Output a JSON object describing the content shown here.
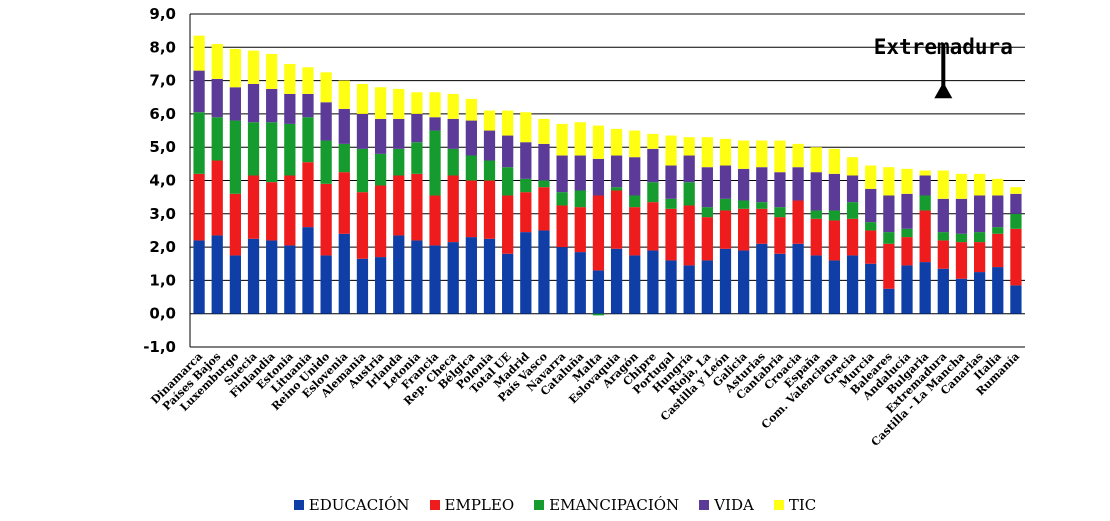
{
  "chart_data": {
    "type": "stacked-bar",
    "title": "",
    "xlabel": "",
    "ylabel": "",
    "ylim": [
      -1.0,
      9.0
    ],
    "yticks": [
      "-1,0",
      "0,0",
      "1,0",
      "2,0",
      "3,0",
      "4,0",
      "5,0",
      "6,0",
      "7,0",
      "8,0",
      "9,0"
    ],
    "grid": true,
    "legend_position": "bottom",
    "categories": [
      "Dinamarca",
      "Países Bajos",
      "Luxemburgo",
      "Suecia",
      "Finlandia",
      "Estonia",
      "Lituania",
      "Reino Unido",
      "Eslovenia",
      "Alemania",
      "Austria",
      "Irlanda",
      "Letonia",
      "Francia",
      "Rep. Checa",
      "Bélgica",
      "Polonia",
      "Total UE",
      "Madrid",
      "País Vasco",
      "Navarra",
      "Cataluña",
      "Malta",
      "Eslovaquia",
      "Aragón",
      "Chipre",
      "Portugal",
      "Hungría",
      "Rioja, La",
      "Castilla y León",
      "Galicia",
      "Asturias",
      "Cantabria",
      "Croacia",
      "España",
      "Com. Valenciana",
      "Grecia",
      "Murcia",
      "Baleares",
      "Andalucía",
      "Bulgaria",
      "Extremadura",
      "Castilla - La Mancha",
      "Canarias",
      "Italia",
      "Rumanía"
    ],
    "series": [
      {
        "name": "EDUCACIÓN",
        "color": "#0f3ea6",
        "values": [
          2.2,
          2.35,
          1.75,
          2.25,
          2.2,
          2.05,
          2.6,
          1.75,
          2.4,
          1.65,
          1.7,
          2.35,
          2.2,
          2.05,
          2.15,
          2.3,
          2.25,
          1.8,
          2.45,
          2.5,
          2.0,
          1.85,
          1.3,
          1.95,
          1.75,
          1.9,
          1.6,
          1.45,
          1.6,
          1.95,
          1.9,
          2.1,
          1.8,
          2.1,
          1.75,
          1.6,
          1.75,
          1.5,
          0.75,
          1.45,
          1.55,
          1.35,
          1.05,
          1.25,
          1.4,
          0.85
        ]
      },
      {
        "name": "EMPLEO",
        "color": "#ee1c1c",
        "values": [
          2.0,
          2.25,
          1.85,
          1.9,
          1.75,
          2.1,
          1.95,
          2.15,
          1.85,
          2.0,
          2.15,
          1.8,
          2.0,
          1.5,
          2.0,
          1.7,
          1.75,
          1.75,
          1.2,
          1.3,
          1.25,
          1.35,
          2.25,
          1.75,
          1.45,
          1.45,
          1.55,
          1.8,
          1.3,
          1.15,
          1.25,
          1.05,
          1.1,
          1.3,
          1.1,
          1.2,
          1.1,
          1.0,
          1.35,
          0.85,
          1.55,
          0.85,
          1.1,
          0.9,
          1.0,
          1.7
        ]
      },
      {
        "name": "EMANCIPACIÓN",
        "color": "#169c2e",
        "values": [
          1.85,
          1.3,
          2.2,
          1.6,
          1.8,
          1.55,
          1.35,
          1.3,
          0.85,
          1.3,
          0.95,
          0.8,
          0.95,
          1.95,
          0.8,
          0.75,
          0.6,
          0.85,
          0.4,
          0.2,
          0.4,
          0.5,
          -0.05,
          0.1,
          0.35,
          0.6,
          0.3,
          0.7,
          0.3,
          0.35,
          0.25,
          0.2,
          0.3,
          0.0,
          0.25,
          0.3,
          0.5,
          0.25,
          0.35,
          0.25,
          0.45,
          0.25,
          0.25,
          0.3,
          0.2,
          0.45
        ]
      },
      {
        "name": "VIDA",
        "color": "#5b3a98",
        "values": [
          1.25,
          1.15,
          1.0,
          1.15,
          1.0,
          0.9,
          0.7,
          1.15,
          1.05,
          1.05,
          1.05,
          0.9,
          0.85,
          0.4,
          0.9,
          1.05,
          0.9,
          0.95,
          1.1,
          1.1,
          1.1,
          1.05,
          1.1,
          0.95,
          1.15,
          1.0,
          1.0,
          0.8,
          1.2,
          1.0,
          0.95,
          1.05,
          1.05,
          1.0,
          1.15,
          1.1,
          0.8,
          1.0,
          1.1,
          1.05,
          0.6,
          1.0,
          1.05,
          1.1,
          0.95,
          0.6
        ]
      },
      {
        "name": "TIC",
        "color": "#ffff14",
        "values": [
          1.05,
          1.05,
          1.15,
          1.0,
          1.05,
          0.9,
          0.8,
          0.9,
          0.85,
          0.9,
          0.95,
          0.9,
          0.65,
          0.75,
          0.75,
          0.65,
          0.6,
          0.75,
          0.9,
          0.75,
          0.95,
          1.0,
          1.0,
          0.8,
          0.8,
          0.45,
          0.9,
          0.55,
          0.9,
          0.8,
          0.85,
          0.8,
          0.95,
          0.7,
          0.75,
          0.75,
          0.55,
          0.7,
          0.85,
          0.75,
          0.15,
          0.85,
          0.75,
          0.65,
          0.5,
          0.2
        ]
      }
    ],
    "annotation": {
      "text": "Extremadura",
      "points_to": "Extremadura",
      "arrow_from": 8.1,
      "arrow_to": 6.95
    }
  }
}
